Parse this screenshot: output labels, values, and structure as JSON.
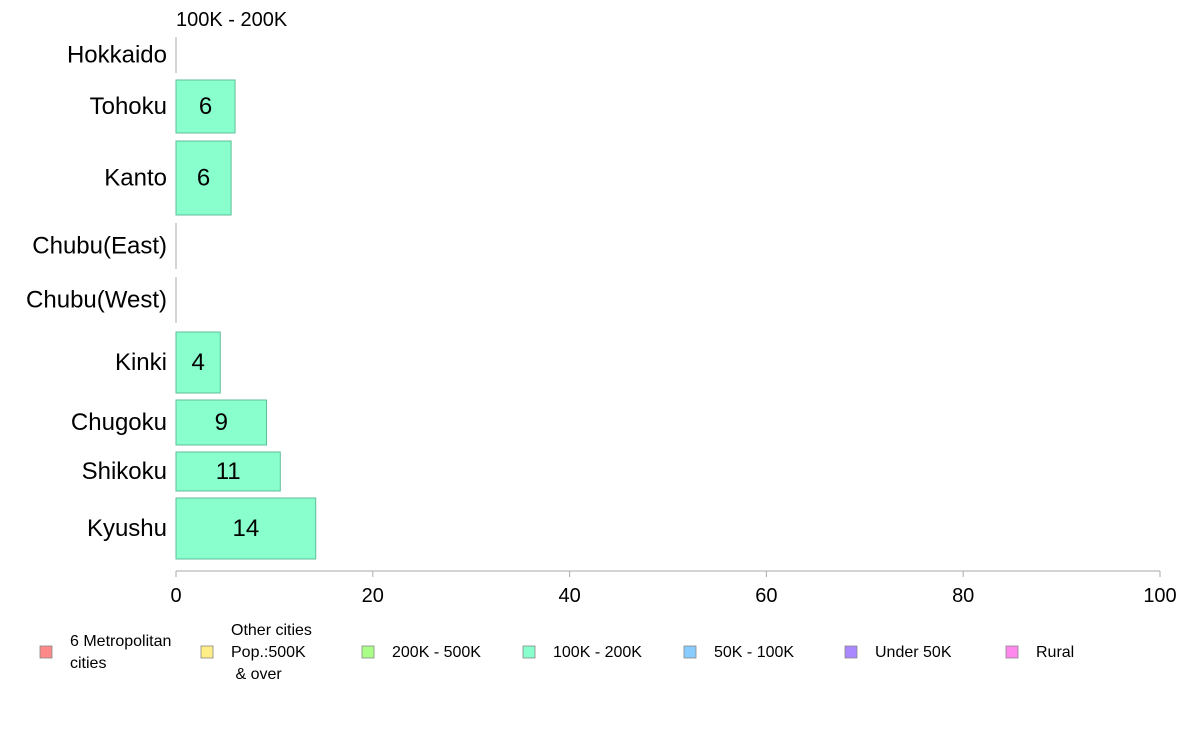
{
  "chart_data": {
    "type": "bar",
    "orientation": "horizontal",
    "title": "100K - 200K",
    "categories": [
      "Hokkaido",
      "Tohoku",
      "Kanto",
      "Chubu(East)",
      "Chubu(West)",
      "Kinki",
      "Chugoku",
      "Shikoku",
      "Kyushu"
    ],
    "values": [
      0,
      6,
      5.6,
      0,
      0,
      4.5,
      9.2,
      10.6,
      14.2
    ],
    "data_labels": [
      "",
      "6",
      "6",
      "",
      "",
      "4",
      "9",
      "11",
      "14"
    ],
    "bar_color": "#88ffcc",
    "bar_stroke": "#5fbf98",
    "xlim": [
      0,
      100
    ],
    "xticks": [
      0,
      20,
      40,
      60,
      80,
      100
    ],
    "xlabel": "",
    "ylabel": "",
    "grid": false,
    "legend_position": "bottom",
    "legend": [
      {
        "lines": [
          "6 Metropolitan",
          "cities"
        ],
        "color": "#ff8888"
      },
      {
        "lines": [
          "Other cities",
          "Pop.:500K",
          " & over"
        ],
        "color": "#ffee88"
      },
      {
        "lines": [
          "200K - 500K"
        ],
        "color": "#aaff88"
      },
      {
        "lines": [
          "100K - 200K"
        ],
        "color": "#88ffcc"
      },
      {
        "lines": [
          "50K - 100K"
        ],
        "color": "#88ccff"
      },
      {
        "lines": [
          "Under 50K"
        ],
        "color": "#aa88ff"
      },
      {
        "lines": [
          "Rural"
        ],
        "color": "#ff88ee"
      }
    ]
  }
}
